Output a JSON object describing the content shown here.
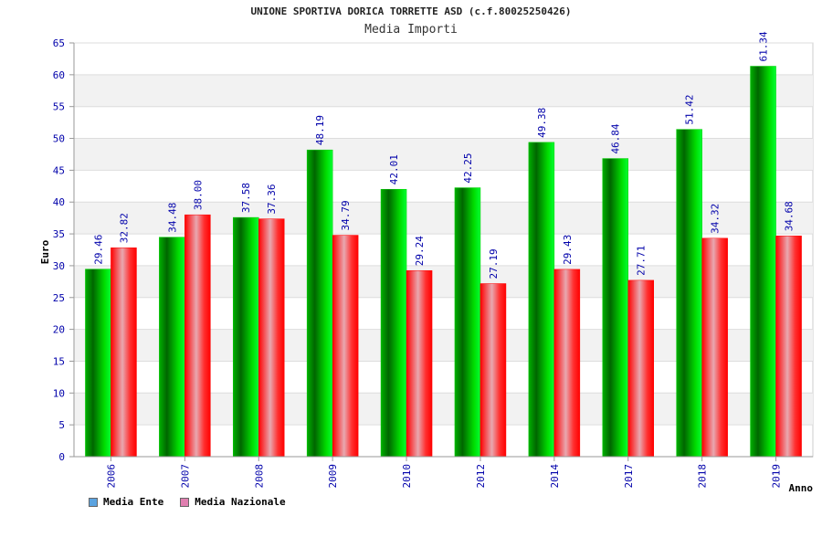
{
  "chart_data": {
    "type": "bar",
    "title": "UNIONE SPORTIVA DORICA TORRETTE ASD (c.f.80025250426)",
    "subtitle": "Media Importi",
    "xlabel": "Anno",
    "ylabel": "Euro",
    "ylim": [
      0,
      65
    ],
    "y_ticks": [
      0,
      5,
      10,
      15,
      20,
      25,
      30,
      35,
      40,
      45,
      50,
      55,
      60,
      65
    ],
    "categories": [
      "2006",
      "2007",
      "2008",
      "2009",
      "2010",
      "2012",
      "2014",
      "2017",
      "2018",
      "2019"
    ],
    "series": [
      {
        "name": "Media Ente",
        "values": [
          29.46,
          34.48,
          37.58,
          48.19,
          42.01,
          42.25,
          49.38,
          46.84,
          51.42,
          61.34
        ],
        "labels": [
          "29.46",
          "34.48",
          "37.58",
          "48.19",
          "42.01",
          "42.25",
          "49.38",
          "46.84",
          "51.42",
          "61.34"
        ]
      },
      {
        "name": "Media Nazionale",
        "values": [
          32.82,
          38.0,
          37.36,
          34.79,
          29.24,
          27.19,
          29.43,
          27.71,
          34.32,
          34.68
        ],
        "labels": [
          "32.82",
          "38.00",
          "37.36",
          "34.79",
          "29.24",
          "27.19",
          "29.43",
          "27.71",
          "34.32",
          "34.68"
        ]
      }
    ],
    "grid": true,
    "legend_position": "bottom-left",
    "colors": {
      "ente": "#00cc00",
      "nazionale": "#ff0000",
      "legend_ente": "#5ba3e0",
      "legend_nazionale": "#e07fb0",
      "tick_text": "#0000aa",
      "band": "#f2f2f2"
    }
  }
}
